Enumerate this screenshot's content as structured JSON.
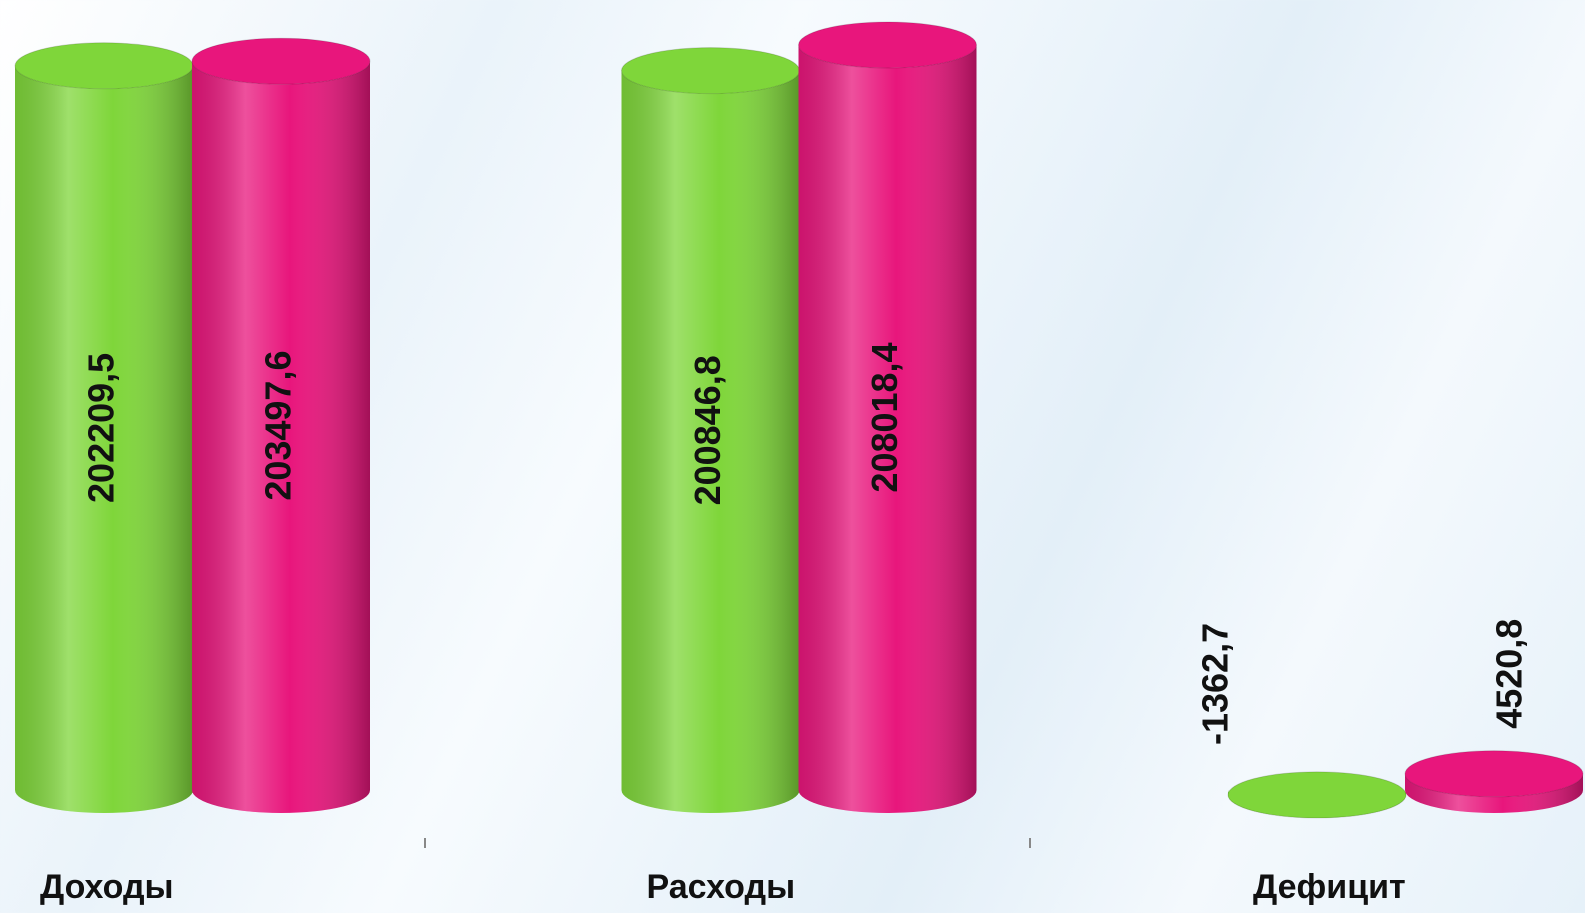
{
  "chart_data": {
    "type": "cylinder-bar",
    "categories": [
      "Доходы",
      "Расходы",
      "Дефицит"
    ],
    "series": [
      {
        "color": "#7fd63a",
        "values": [
          202209.5,
          200846.8,
          -1362.7
        ],
        "value_labels": [
          "202209,5",
          "200846,8",
          "-1362,7"
        ]
      },
      {
        "color": "#e8167c",
        "values": [
          203497.6,
          208018.4,
          4520.8
        ],
        "value_labels": [
          "203497,6",
          "208018,4",
          "4520,8"
        ]
      }
    ]
  }
}
